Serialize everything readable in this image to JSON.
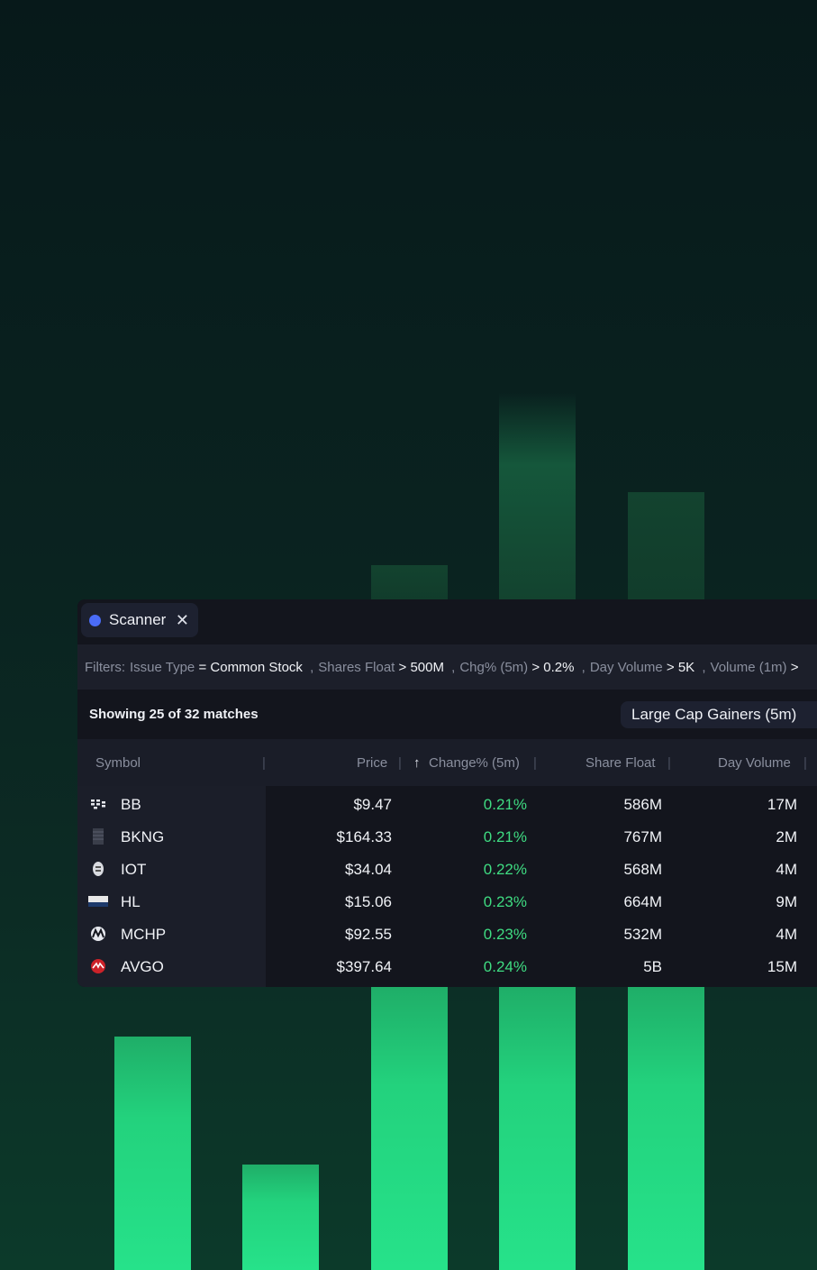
{
  "tab": {
    "title": "Scanner",
    "close_glyph": "✕",
    "dot_color": "#4a6cf7"
  },
  "filters": {
    "label": "Filters:",
    "items": [
      {
        "key": "Issue Type",
        "op": "=",
        "value": "Common Stock"
      },
      {
        "key": "Shares Float",
        "op": ">",
        "value": "500M"
      },
      {
        "key": "Chg% (5m)",
        "op": ">",
        "value": "0.2%"
      },
      {
        "key": "Day Volume",
        "op": ">",
        "value": "5K"
      },
      {
        "key": "Volume (1m)",
        "op": ">",
        "value": ""
      }
    ]
  },
  "summary": {
    "matches": "Showing 25 of 32 matches",
    "preset": "Large Cap Gainers (5m)"
  },
  "columns": {
    "symbol": "Symbol",
    "price": "Price",
    "sort_arrow": "↑",
    "change": "Change% (5m)",
    "float": "Share Float",
    "volume": "Day Volume"
  },
  "rows": [
    {
      "icon": "blackberry-icon",
      "symbol": "BB",
      "price": "$9.47",
      "change": "0.21%",
      "float": "586M",
      "volume": "17M"
    },
    {
      "icon": "booking-icon",
      "symbol": "BKNG",
      "price": "$164.33",
      "change": "0.21%",
      "float": "767M",
      "volume": "2M"
    },
    {
      "icon": "samsara-icon",
      "symbol": "IOT",
      "price": "$34.04",
      "change": "0.22%",
      "float": "568M",
      "volume": "4M"
    },
    {
      "icon": "hecla-icon",
      "symbol": "HL",
      "price": "$15.06",
      "change": "0.23%",
      "float": "664M",
      "volume": "9M"
    },
    {
      "icon": "microchip-icon",
      "symbol": "MCHP",
      "price": "$92.55",
      "change": "0.23%",
      "float": "532M",
      "volume": "4M"
    },
    {
      "icon": "broadcom-icon",
      "symbol": "AVGO",
      "price": "$397.64",
      "change": "0.24%",
      "float": "5B",
      "volume": "15M"
    }
  ],
  "colors": {
    "positive": "#3fdc82",
    "panel": "#13151d",
    "bar": "#26e28a"
  }
}
